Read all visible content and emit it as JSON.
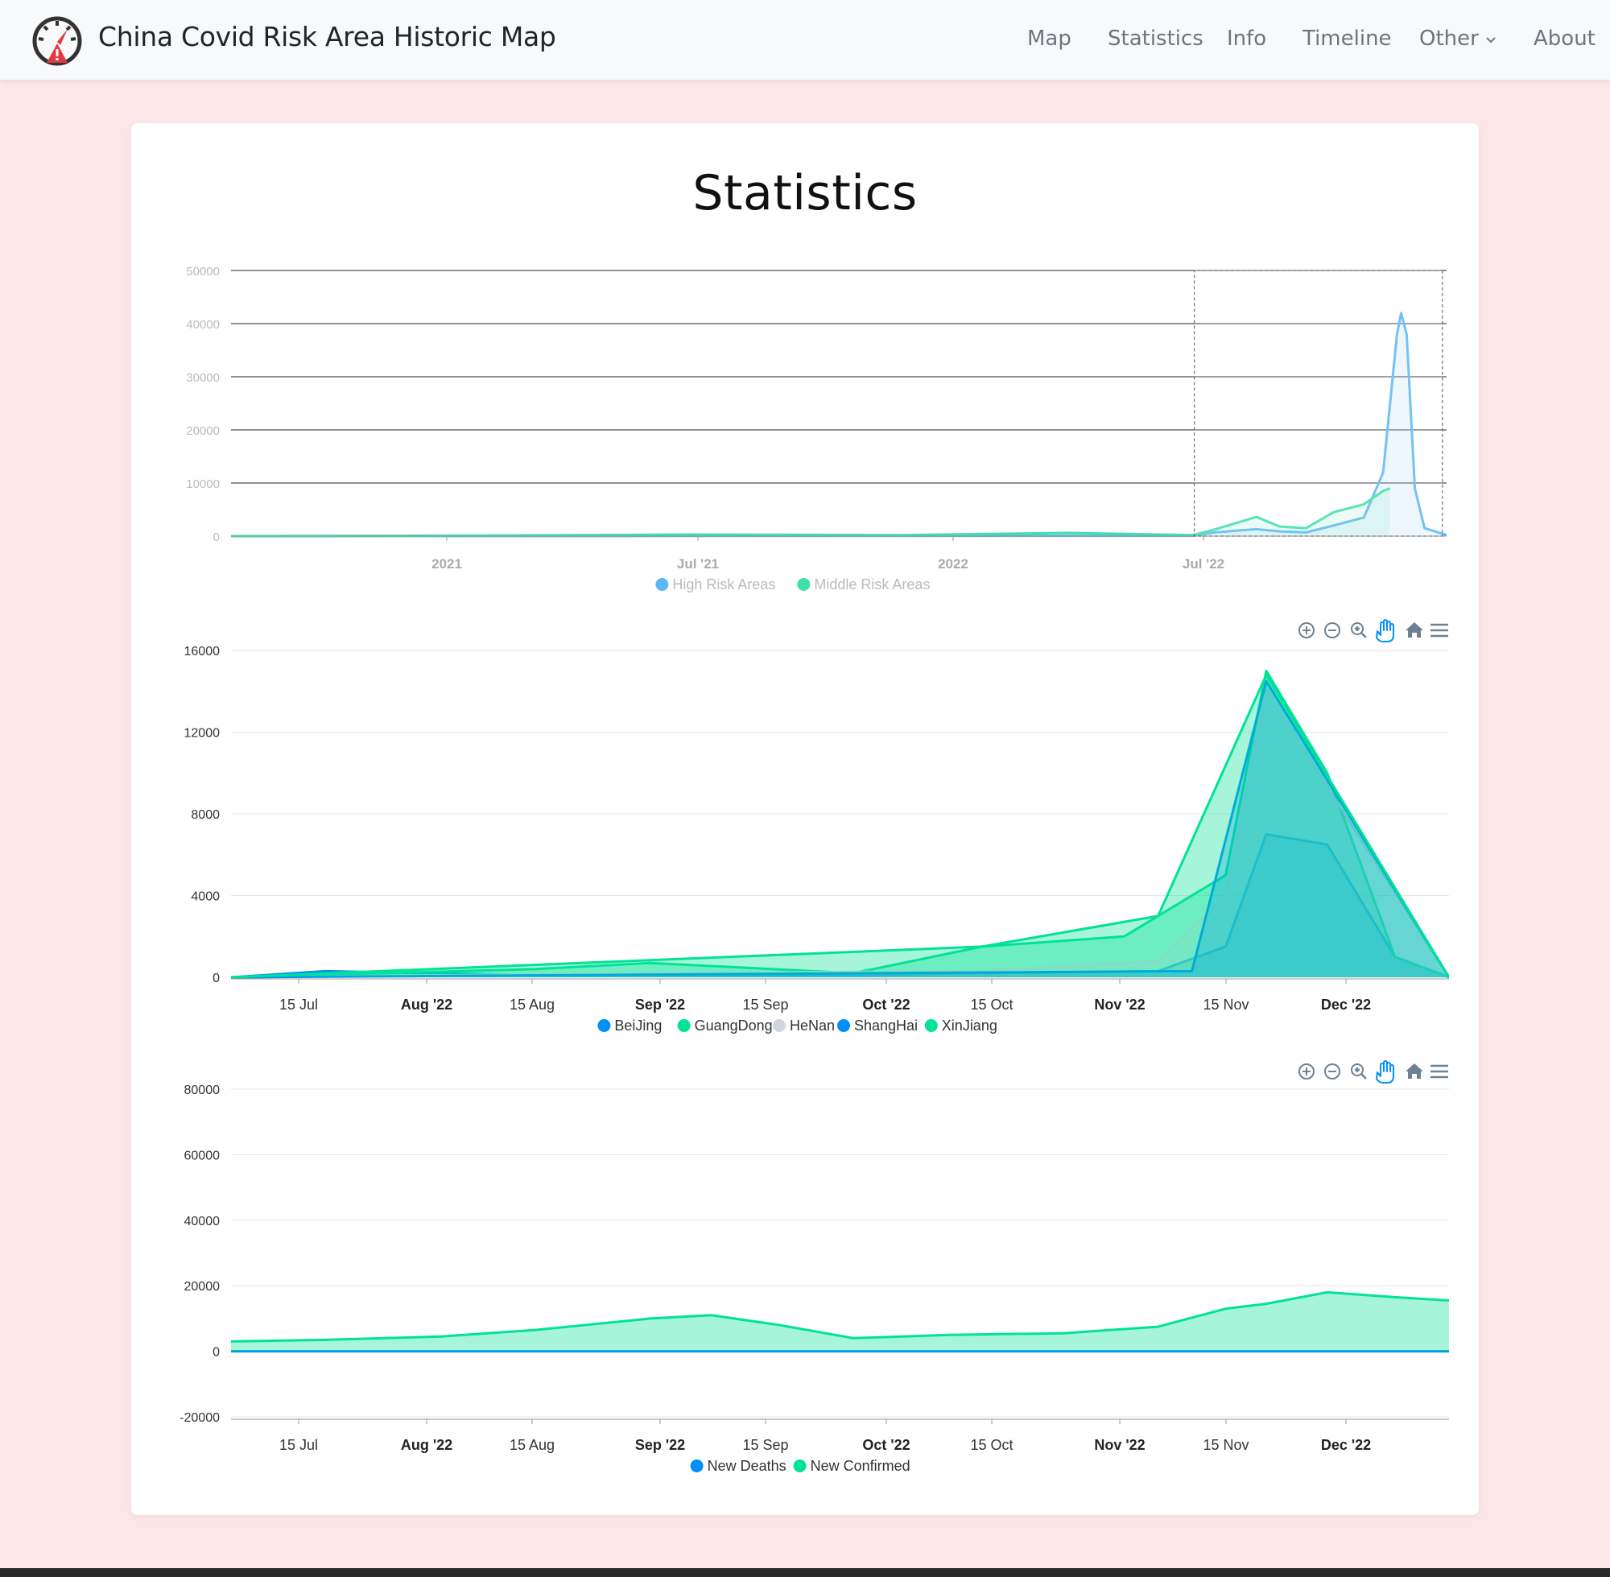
{
  "nav": {
    "title": "China Covid Risk Area Historic Map",
    "items": [
      "Map",
      "Statistics",
      "Info",
      "Timeline",
      "Other",
      "About"
    ],
    "logo_icon": "speedometer-warning-icon"
  },
  "page": {
    "title": "Statistics"
  },
  "colors": {
    "background": "#fde6e8",
    "blue": "#008ffb",
    "green": "#00e396",
    "grey": "#cfd6de"
  },
  "toolbar_icons": [
    "zoom-in-icon",
    "zoom-out-icon",
    "zoom-select-icon",
    "pan-hand-icon",
    "home-icon",
    "menu-icon"
  ],
  "chart_data": [
    {
      "type": "area",
      "role": "overview-brush",
      "yticks": [
        "50000",
        "40000",
        "30000",
        "20000",
        "10000",
        "0"
      ],
      "ylim": [
        0,
        50000
      ],
      "xticks": [
        "2021",
        "Jul '21",
        "2022",
        "Jul '22"
      ],
      "x_range": [
        "2020-08",
        "2022-12-31"
      ],
      "brush_selection": [
        "2022-07-01",
        "2022-12-28"
      ],
      "series": [
        {
          "name": "High Risk Areas",
          "color": "#5bb8f5",
          "points": [
            [
              "2020-08-01",
              0
            ],
            [
              "2022-06-30",
              60
            ],
            [
              "2022-07-15",
              700
            ],
            [
              "2022-08-15",
              1300
            ],
            [
              "2022-09-01",
              900
            ],
            [
              "2022-09-20",
              700
            ],
            [
              "2022-10-10",
              2000
            ],
            [
              "2022-11-01",
              3500
            ],
            [
              "2022-11-15",
              12000
            ],
            [
              "2022-11-25",
              38000
            ],
            [
              "2022-11-28",
              42000
            ],
            [
              "2022-12-02",
              38000
            ],
            [
              "2022-12-08",
              9000
            ],
            [
              "2022-12-15",
              1500
            ],
            [
              "2022-12-31",
              200
            ]
          ]
        },
        {
          "name": "Middle Risk Areas",
          "color": "#3ee0a8",
          "points": [
            [
              "2020-08-01",
              0
            ],
            [
              "2021-02-01",
              100
            ],
            [
              "2021-07-01",
              300
            ],
            [
              "2021-12-01",
              200
            ],
            [
              "2022-04-01",
              600
            ],
            [
              "2022-06-30",
              200
            ],
            [
              "2022-07-15",
              1200
            ],
            [
              "2022-08-15",
              3600
            ],
            [
              "2022-09-01",
              1800
            ],
            [
              "2022-09-20",
              1500
            ],
            [
              "2022-10-10",
              4500
            ],
            [
              "2022-11-01",
              6000
            ],
            [
              "2022-11-15",
              8500
            ],
            [
              "2022-11-20",
              9000
            ]
          ]
        }
      ]
    },
    {
      "type": "area",
      "role": "risk-areas-by-province",
      "yticks": [
        "16000",
        "12000",
        "8000",
        "4000",
        "0"
      ],
      "ylim": [
        0,
        16000
      ],
      "xticks": [
        {
          "label": "15 Jul",
          "bold": false
        },
        {
          "label": "Aug '22",
          "bold": true
        },
        {
          "label": "15 Aug",
          "bold": false
        },
        {
          "label": "Sep '22",
          "bold": true
        },
        {
          "label": "15 Sep",
          "bold": false
        },
        {
          "label": "Oct '22",
          "bold": true
        },
        {
          "label": "15 Oct",
          "bold": false
        },
        {
          "label": "Nov '22",
          "bold": true
        },
        {
          "label": "15 Nov",
          "bold": false
        },
        {
          "label": "Dec '22",
          "bold": true
        }
      ],
      "x_range": [
        "2022-07-01",
        "2022-12-28"
      ],
      "series": [
        {
          "name": "BeiJing",
          "color": "#008ffb",
          "points": [
            [
              "2022-07-01",
              0
            ],
            [
              "2022-07-15",
              300
            ],
            [
              "2022-08-15",
              100
            ],
            [
              "2022-10-01",
              100
            ],
            [
              "2022-10-20",
              200
            ],
            [
              "2022-11-15",
              300
            ],
            [
              "2022-11-25",
              1500
            ],
            [
              "2022-12-01",
              7000
            ],
            [
              "2022-12-10",
              6500
            ],
            [
              "2022-12-20",
              1000
            ],
            [
              "2022-12-28",
              0
            ]
          ]
        },
        {
          "name": "GuangDong",
          "color": "#00e396",
          "points": [
            [
              "2022-07-01",
              0
            ],
            [
              "2022-08-15",
              400
            ],
            [
              "2022-09-01",
              700
            ],
            [
              "2022-10-01",
              200
            ],
            [
              "2022-10-20",
              1500
            ],
            [
              "2022-11-10",
              2000
            ],
            [
              "2022-11-25",
              5000
            ],
            [
              "2022-12-01",
              15000
            ],
            [
              "2022-12-10",
              10000
            ],
            [
              "2022-12-20",
              1000
            ],
            [
              "2022-12-28",
              0
            ]
          ]
        },
        {
          "name": "HeNan",
          "color": "#cfd6de",
          "points": [
            [
              "2022-07-01",
              0
            ],
            [
              "2022-09-01",
              200
            ],
            [
              "2022-10-20",
              300
            ],
            [
              "2022-11-15",
              800
            ],
            [
              "2022-11-25",
              4000
            ],
            [
              "2022-12-01",
              14000
            ],
            [
              "2022-12-28",
              0
            ]
          ]
        },
        {
          "name": "ShangHai",
          "color": "#008ffb",
          "points": [
            [
              "2022-07-01",
              0
            ],
            [
              "2022-11-20",
              300
            ],
            [
              "2022-12-01",
              14500
            ],
            [
              "2022-12-28",
              0
            ]
          ]
        },
        {
          "name": "XinJiang",
          "color": "#00e396",
          "points": [
            [
              "2022-07-01",
              0
            ],
            [
              "2022-10-20",
              1500
            ],
            [
              "2022-11-15",
              3000
            ],
            [
              "2022-12-01",
              14800
            ],
            [
              "2022-12-28",
              0
            ]
          ]
        }
      ]
    },
    {
      "type": "area",
      "role": "deaths-and-confirmed",
      "yticks": [
        "80000",
        "60000",
        "40000",
        "20000",
        "0",
        "-20000"
      ],
      "ylim": [
        -20000,
        80000
      ],
      "xticks": [
        {
          "label": "15 Jul",
          "bold": false
        },
        {
          "label": "Aug '22",
          "bold": true
        },
        {
          "label": "15 Aug",
          "bold": false
        },
        {
          "label": "Sep '22",
          "bold": true
        },
        {
          "label": "15 Sep",
          "bold": false
        },
        {
          "label": "Oct '22",
          "bold": true
        },
        {
          "label": "15 Oct",
          "bold": false
        },
        {
          "label": "Nov '22",
          "bold": true
        },
        {
          "label": "15 Nov",
          "bold": false
        },
        {
          "label": "Dec '22",
          "bold": true
        }
      ],
      "x_range": [
        "2022-07-01",
        "2022-12-28"
      ],
      "series": [
        {
          "name": "New Deaths",
          "color": "#008ffb",
          "points": [
            [
              "2022-07-01",
              0
            ],
            [
              "2022-12-28",
              0
            ]
          ]
        },
        {
          "name": "New Confirmed",
          "color": "#00e396",
          "points": [
            [
              "2022-07-01",
              3000
            ],
            [
              "2022-07-15",
              3500
            ],
            [
              "2022-08-01",
              4500
            ],
            [
              "2022-08-15",
              6500
            ],
            [
              "2022-09-01",
              10000
            ],
            [
              "2022-09-10",
              11000
            ],
            [
              "2022-09-20",
              8000
            ],
            [
              "2022-10-01",
              4000
            ],
            [
              "2022-10-15",
              5000
            ],
            [
              "2022-11-01",
              5500
            ],
            [
              "2022-11-15",
              7500
            ],
            [
              "2022-11-25",
              13000
            ],
            [
              "2022-12-01",
              14500
            ],
            [
              "2022-12-10",
              18000
            ],
            [
              "2022-12-20",
              16500
            ],
            [
              "2022-12-28",
              15500
            ]
          ]
        }
      ]
    }
  ]
}
